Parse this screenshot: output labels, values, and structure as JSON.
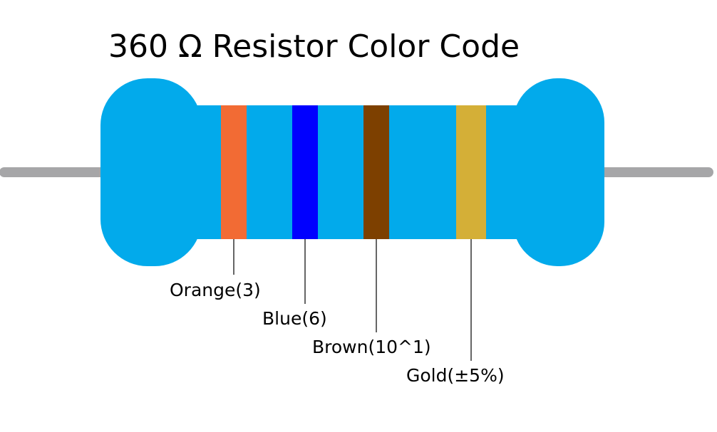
{
  "title": "360 Ω Resistor Color Code",
  "colors": {
    "body": "#02aaeb",
    "lead": "#a6a6a8",
    "leader_line": "#000000"
  },
  "bands": [
    {
      "name": "Orange",
      "label": "Orange(3)",
      "color": "#f26b34"
    },
    {
      "name": "Blue",
      "label": "Blue(6)",
      "color": "#0000ff"
    },
    {
      "name": "Brown",
      "label": "Brown(10^1)",
      "color": "#7d4000"
    },
    {
      "name": "Gold",
      "label": "Gold(±5%)",
      "color": "#d4af37"
    }
  ]
}
